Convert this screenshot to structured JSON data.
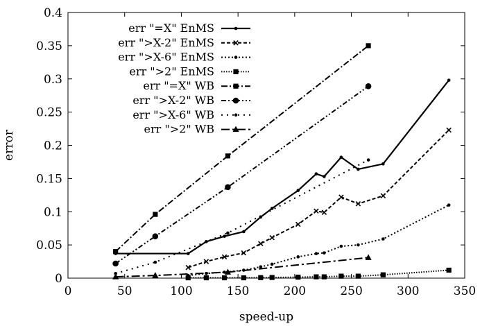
{
  "chart_data": {
    "type": "line",
    "title": "",
    "xlabel": "speed-up",
    "ylabel": "error",
    "xlim": [
      0,
      350
    ],
    "ylim": [
      0,
      0.4
    ],
    "x_ticks": [
      "0",
      "50",
      "100",
      "150",
      "200",
      "250",
      "300",
      "350"
    ],
    "y_ticks": [
      "0",
      "0.05",
      "0.1",
      "0.15",
      "0.2",
      "0.25",
      "0.3",
      "0.35",
      "0.4"
    ],
    "grid": false,
    "legend_position": "top-left",
    "series": [
      {
        "name": "err \"=X\" EnMS",
        "dash": "solid",
        "marker": "dot",
        "width": 2.2,
        "x": [
          42,
          106,
          122,
          138,
          155,
          170,
          180,
          203,
          219,
          226,
          241,
          256,
          278,
          336
        ],
        "y": [
          0.037,
          0.037,
          0.055,
          0.063,
          0.07,
          0.092,
          0.105,
          0.132,
          0.157,
          0.153,
          0.182,
          0.164,
          0.172,
          0.298
        ]
      },
      {
        "name": "err \">X-2\" EnMS",
        "dash": "short",
        "marker": "cross",
        "width": 2,
        "x": [
          106,
          122,
          138,
          155,
          170,
          180,
          203,
          219,
          226,
          241,
          256,
          278,
          336
        ],
        "y": [
          0.016,
          0.025,
          0.032,
          0.038,
          0.052,
          0.061,
          0.081,
          0.101,
          0.099,
          0.122,
          0.112,
          0.124,
          0.223
        ]
      },
      {
        "name": "err \">X-6\" EnMS",
        "dash": "dotted",
        "marker": "dot",
        "width": 2,
        "x": [
          106,
          122,
          138,
          155,
          170,
          180,
          203,
          219,
          226,
          241,
          256,
          278,
          336
        ],
        "y": [
          0.004,
          0.007,
          0.009,
          0.012,
          0.017,
          0.021,
          0.032,
          0.037,
          0.038,
          0.048,
          0.05,
          0.059,
          0.11
        ]
      },
      {
        "name": "err \">2\" EnMS",
        "dash": "fine",
        "marker": "square",
        "width": 2,
        "x": [
          106,
          122,
          138,
          155,
          170,
          180,
          203,
          219,
          226,
          241,
          256,
          278,
          336
        ],
        "y": [
          0.0005,
          0.0005,
          0.0005,
          0.0005,
          0.0008,
          0.001,
          0.0015,
          0.002,
          0.002,
          0.003,
          0.003,
          0.005,
          0.012
        ]
      },
      {
        "name": "err \"=X\" WB",
        "dash": "dashdot",
        "marker": "square",
        "width": 2,
        "x": [
          42,
          77,
          141,
          265
        ],
        "y": [
          0.04,
          0.096,
          0.184,
          0.35
        ]
      },
      {
        "name": "err \">X-2\" WB",
        "dash": "dashdotdot",
        "marker": "circle",
        "width": 2,
        "x": [
          42,
          77,
          141,
          265
        ],
        "y": [
          0.022,
          0.063,
          0.137,
          0.289
        ]
      },
      {
        "name": "err \">X-6\" WB",
        "dash": "sparse",
        "marker": "dot",
        "width": 2,
        "x": [
          42,
          77,
          141,
          265
        ],
        "y": [
          0.007,
          0.024,
          0.068,
          0.178
        ]
      },
      {
        "name": "err \">2\" WB",
        "dash": "longdashdot",
        "marker": "triangle",
        "width": 2,
        "x": [
          42,
          77,
          141,
          265
        ],
        "y": [
          0.002,
          0.004,
          0.009,
          0.031
        ]
      }
    ]
  }
}
